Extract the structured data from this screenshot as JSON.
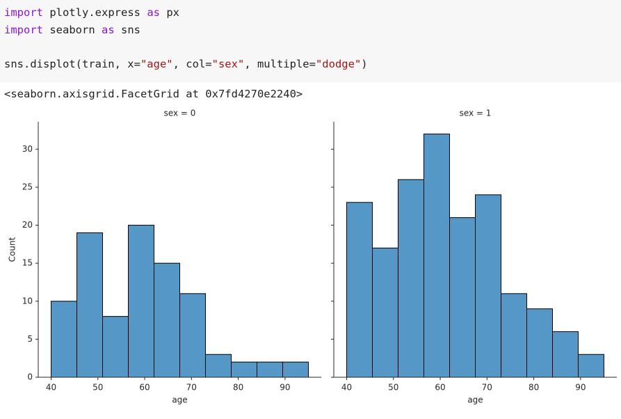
{
  "code": {
    "lines": [
      [
        "import",
        " plotly.express ",
        "as",
        " px"
      ],
      [
        "import",
        " seaborn ",
        "as",
        " sns"
      ],
      [
        "sns.displot(train, x=",
        "\"age\"",
        ", col=",
        "\"sex\"",
        ", multiple=",
        "\"dodge\"",
        ")"
      ]
    ]
  },
  "output": "<seaborn.axisgrid.FacetGrid at 0x7fd4270e2240>",
  "chart_data": [
    {
      "type": "histogram",
      "title": "sex = 0",
      "xlabel": "age",
      "ylabel": "Count",
      "color": "#5597c6",
      "bins": [
        40,
        45.5,
        51,
        56.5,
        62,
        67.5,
        73,
        78.5,
        84,
        89.5,
        95
      ],
      "values": [
        10,
        19,
        8,
        20,
        15,
        11,
        3,
        2,
        2,
        2
      ],
      "xlim": [
        37.25,
        97.75
      ],
      "xticks": [
        40,
        50,
        60,
        70,
        80,
        90
      ],
      "ylim": [
        0,
        33.6
      ],
      "yticks": [
        0,
        5,
        10,
        15,
        20,
        25,
        30
      ],
      "show_ytick_labels": true
    },
    {
      "type": "histogram",
      "title": "sex = 1",
      "xlabel": "age",
      "color": "#5597c6",
      "bins": [
        40,
        45.5,
        51,
        56.5,
        62,
        67.5,
        73,
        78.5,
        84,
        89.5,
        95
      ],
      "values": [
        23,
        17,
        26,
        32,
        21,
        24,
        11,
        9,
        6,
        3
      ],
      "xlim": [
        37.25,
        97.75
      ],
      "xticks": [
        40,
        50,
        60,
        70,
        80,
        90
      ],
      "ylim": [
        0,
        33.6
      ],
      "yticks": [
        0,
        5,
        10,
        15,
        20,
        25,
        30
      ],
      "show_ytick_labels": false
    }
  ]
}
